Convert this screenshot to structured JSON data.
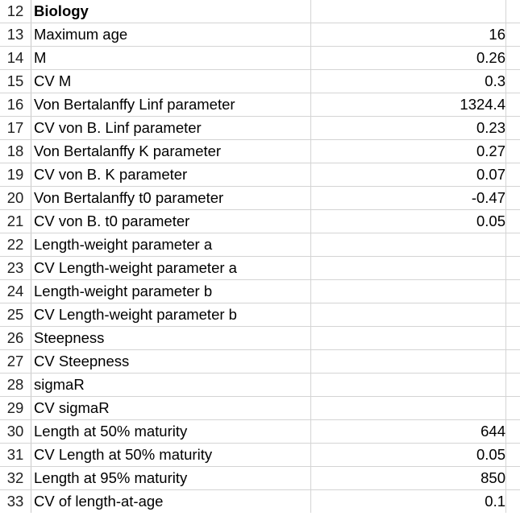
{
  "sheet": {
    "rows": [
      {
        "num": "12",
        "label": "Biology",
        "value": "",
        "bold": true
      },
      {
        "num": "13",
        "label": "Maximum age",
        "value": "16"
      },
      {
        "num": "14",
        "label": "M",
        "value": "0.26"
      },
      {
        "num": "15",
        "label": "CV M",
        "value": "0.3"
      },
      {
        "num": "16",
        "label": "Von Bertalanffy Linf parameter",
        "value": "1324.4"
      },
      {
        "num": "17",
        "label": "CV von B. Linf parameter",
        "value": "0.23"
      },
      {
        "num": "18",
        "label": "Von Bertalanffy K parameter",
        "value": "0.27"
      },
      {
        "num": "19",
        "label": "CV von B. K parameter",
        "value": "0.07"
      },
      {
        "num": "20",
        "label": "Von Bertalanffy t0 parameter",
        "value": "-0.47"
      },
      {
        "num": "21",
        "label": "CV von B. t0 parameter",
        "value": "0.05"
      },
      {
        "num": "22",
        "label": "Length-weight parameter a",
        "value": ""
      },
      {
        "num": "23",
        "label": "CV Length-weight parameter a",
        "value": ""
      },
      {
        "num": "24",
        "label": "Length-weight parameter b",
        "value": ""
      },
      {
        "num": "25",
        "label": "CV Length-weight parameter b",
        "value": ""
      },
      {
        "num": "26",
        "label": "Steepness",
        "value": ""
      },
      {
        "num": "27",
        "label": "CV Steepness",
        "value": ""
      },
      {
        "num": "28",
        "label": "sigmaR",
        "value": ""
      },
      {
        "num": "29",
        "label": "CV sigmaR",
        "value": ""
      },
      {
        "num": "30",
        "label": "Length at 50% maturity",
        "value": "644"
      },
      {
        "num": "31",
        "label": "CV Length at 50% maturity",
        "value": "0.05"
      },
      {
        "num": "32",
        "label": "Length at 95% maturity",
        "value": "850"
      },
      {
        "num": "33",
        "label": "CV of length-at-age",
        "value": "0.1"
      }
    ]
  }
}
